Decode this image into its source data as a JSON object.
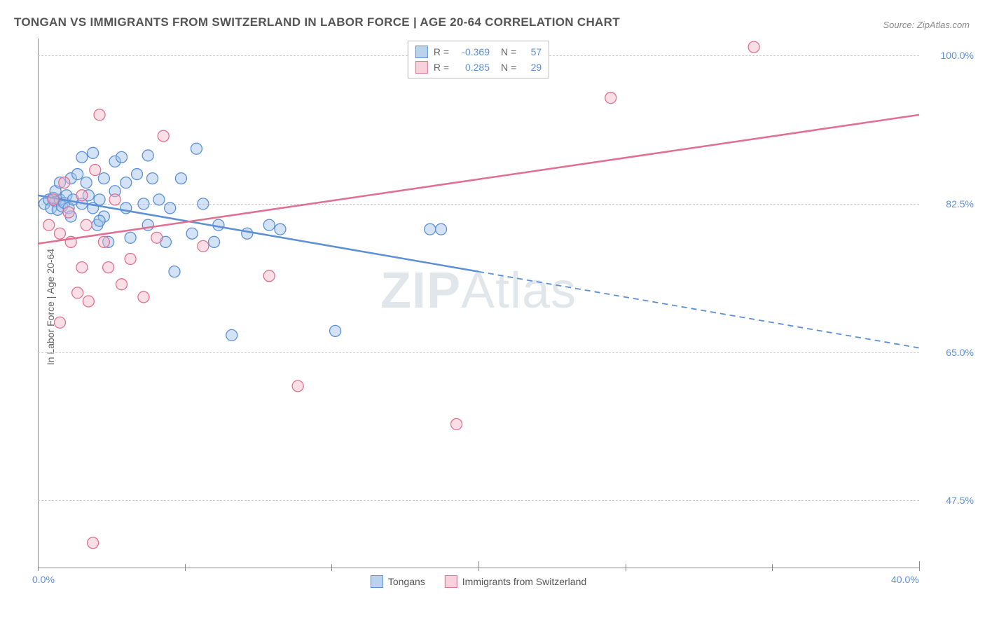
{
  "title": "TONGAN VS IMMIGRANTS FROM SWITZERLAND IN LABOR FORCE | AGE 20-64 CORRELATION CHART",
  "source": "Source: ZipAtlas.com",
  "y_axis_label": "In Labor Force | Age 20-64",
  "watermark_a": "ZIP",
  "watermark_b": "Atlas",
  "chart": {
    "type": "scatter-correlation",
    "xlim": [
      0,
      40
    ],
    "ylim": [
      40,
      102
    ],
    "x_ticks": [
      0,
      20,
      40
    ],
    "x_tick_labels": [
      "0.0%",
      "",
      "40.0%"
    ],
    "x_minor_ticks": [
      6.67,
      13.33,
      26.67,
      33.33
    ],
    "y_gridlines": [
      47.5,
      65.0,
      82.5,
      100.0
    ],
    "y_tick_labels": [
      "47.5%",
      "65.0%",
      "82.5%",
      "100.0%"
    ],
    "background_color": "#ffffff",
    "grid_color": "#cccccc",
    "marker_radius": 8,
    "marker_opacity": 0.45,
    "line_width": 2.5,
    "series": [
      {
        "name": "Tongans",
        "color_fill": "#9ec1e8",
        "color_stroke": "#5b8fd6",
        "R": "-0.369",
        "N": "57",
        "trend_solid": [
          [
            0,
            83.5
          ],
          [
            20,
            74.5
          ]
        ],
        "trend_dashed": [
          [
            20,
            74.5
          ],
          [
            40,
            65.5
          ]
        ],
        "points": [
          [
            0.3,
            82.5
          ],
          [
            0.5,
            83.0
          ],
          [
            0.6,
            82.0
          ],
          [
            0.8,
            82.8
          ],
          [
            0.7,
            83.2
          ],
          [
            0.9,
            81.8
          ],
          [
            1.0,
            83.0
          ],
          [
            1.1,
            82.2
          ],
          [
            1.2,
            82.6
          ],
          [
            1.3,
            83.5
          ],
          [
            0.8,
            84.0
          ],
          [
            1.0,
            85.0
          ],
          [
            1.4,
            82.0
          ],
          [
            1.5,
            85.5
          ],
          [
            1.6,
            83.0
          ],
          [
            1.8,
            86.0
          ],
          [
            2.0,
            88.0
          ],
          [
            2.0,
            82.5
          ],
          [
            2.2,
            85.0
          ],
          [
            2.3,
            83.5
          ],
          [
            2.5,
            82.0
          ],
          [
            2.5,
            88.5
          ],
          [
            2.7,
            80.0
          ],
          [
            2.8,
            83.0
          ],
          [
            3.0,
            85.5
          ],
          [
            3.0,
            81.0
          ],
          [
            3.2,
            78.0
          ],
          [
            3.5,
            87.5
          ],
          [
            3.5,
            84.0
          ],
          [
            3.8,
            88.0
          ],
          [
            4.0,
            82.0
          ],
          [
            4.0,
            85.0
          ],
          [
            4.2,
            78.5
          ],
          [
            4.5,
            86.0
          ],
          [
            4.8,
            82.5
          ],
          [
            5.0,
            88.2
          ],
          [
            5.0,
            80.0
          ],
          [
            5.2,
            85.5
          ],
          [
            5.5,
            83.0
          ],
          [
            5.8,
            78.0
          ],
          [
            6.0,
            82.0
          ],
          [
            6.2,
            74.5
          ],
          [
            6.5,
            85.5
          ],
          [
            7.0,
            79.0
          ],
          [
            7.2,
            89.0
          ],
          [
            7.5,
            82.5
          ],
          [
            8.0,
            78.0
          ],
          [
            8.2,
            80.0
          ],
          [
            8.8,
            67.0
          ],
          [
            9.5,
            79.0
          ],
          [
            10.5,
            80.0
          ],
          [
            11.0,
            79.5
          ],
          [
            13.5,
            67.5
          ],
          [
            17.8,
            79.5
          ],
          [
            18.3,
            79.5
          ],
          [
            1.5,
            81.0
          ],
          [
            2.8,
            80.5
          ]
        ]
      },
      {
        "name": "Immigrants from Switzerland",
        "color_fill": "#f4b8c9",
        "color_stroke": "#e26f8f",
        "R": "0.285",
        "N": "29",
        "trend_solid": [
          [
            0,
            77.8
          ],
          [
            40,
            93.0
          ]
        ],
        "trend_dashed": null,
        "points": [
          [
            0.5,
            80.0
          ],
          [
            0.7,
            83.0
          ],
          [
            1.0,
            79.0
          ],
          [
            1.2,
            85.0
          ],
          [
            1.4,
            81.5
          ],
          [
            1.5,
            78.0
          ],
          [
            1.8,
            72.0
          ],
          [
            2.0,
            75.0
          ],
          [
            2.0,
            83.5
          ],
          [
            2.2,
            80.0
          ],
          [
            2.3,
            71.0
          ],
          [
            2.5,
            42.5
          ],
          [
            2.6,
            86.5
          ],
          [
            2.8,
            93.0
          ],
          [
            3.0,
            78.0
          ],
          [
            3.2,
            75.0
          ],
          [
            3.5,
            83.0
          ],
          [
            3.8,
            73.0
          ],
          [
            4.2,
            76.0
          ],
          [
            4.8,
            71.5
          ],
          [
            5.4,
            78.5
          ],
          [
            5.7,
            90.5
          ],
          [
            7.5,
            77.5
          ],
          [
            10.5,
            74.0
          ],
          [
            11.8,
            61.0
          ],
          [
            19.0,
            56.5
          ],
          [
            26.0,
            95.0
          ],
          [
            32.5,
            101.0
          ],
          [
            1.0,
            68.5
          ]
        ]
      }
    ],
    "legend_top": [
      {
        "series_idx": 0,
        "R_label": "R =",
        "N_label": "N ="
      },
      {
        "series_idx": 1,
        "R_label": "R =",
        "N_label": "N ="
      }
    ],
    "legend_bottom": [
      {
        "series_idx": 0
      },
      {
        "series_idx": 1
      }
    ]
  }
}
